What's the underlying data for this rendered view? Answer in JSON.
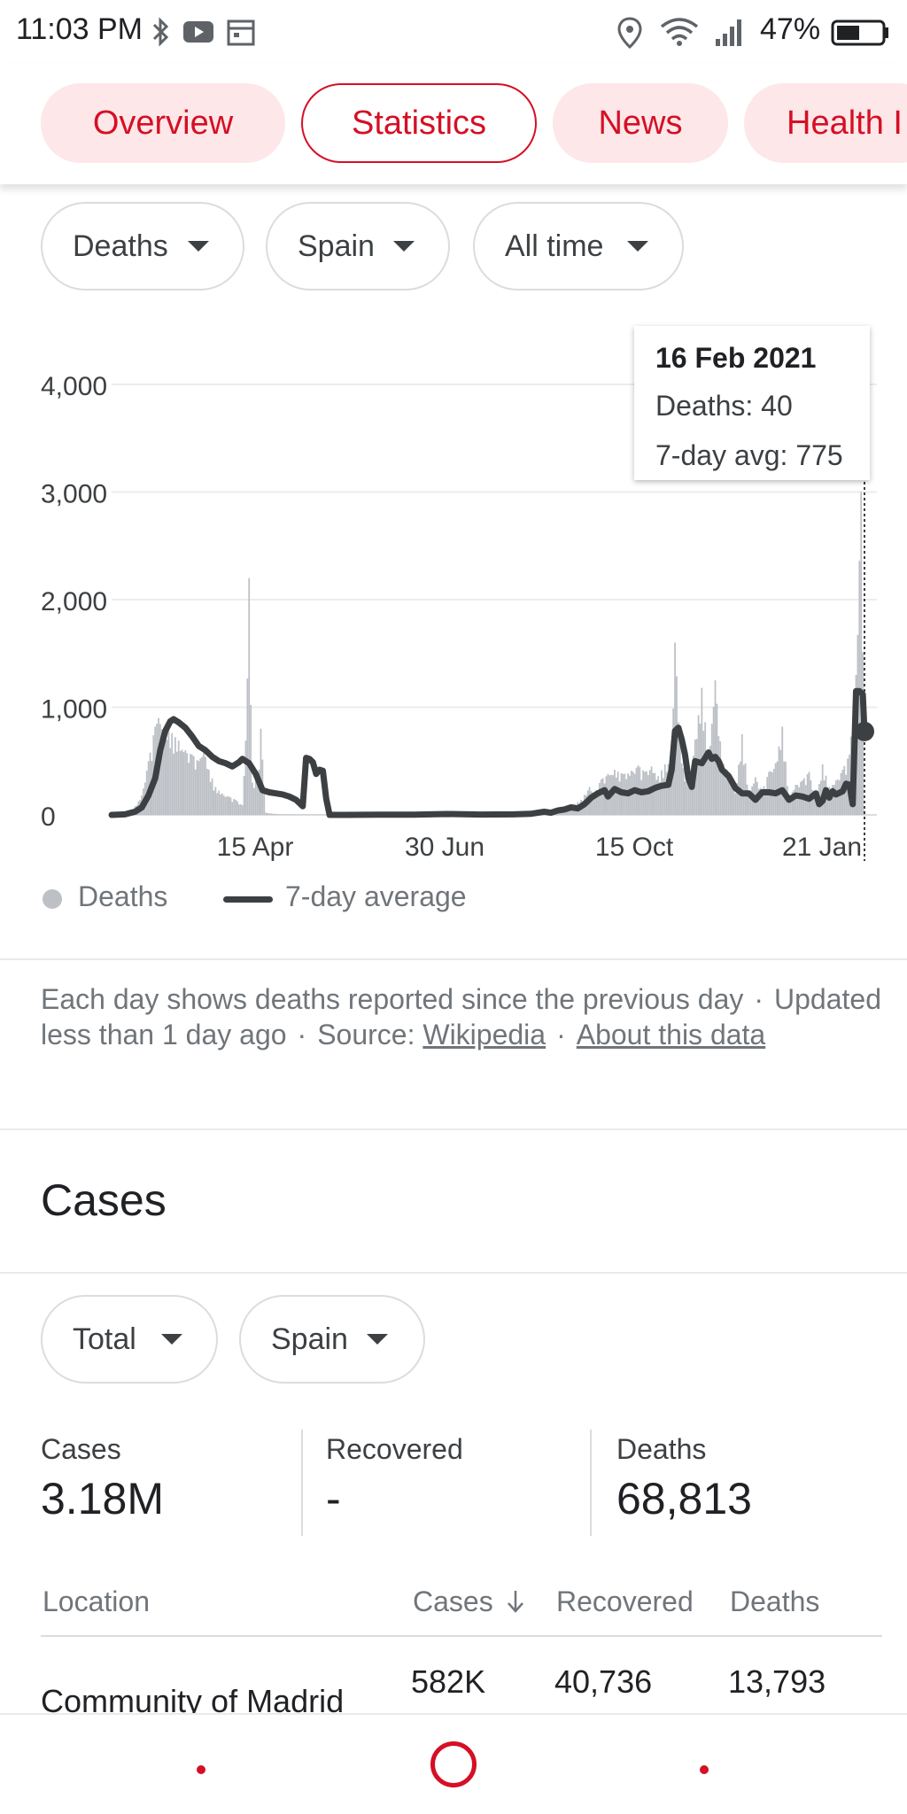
{
  "status_bar": {
    "time": "11:03 PM",
    "battery": "47%",
    "icons": [
      "bluetooth-icon",
      "youtube-icon",
      "calendar-icon",
      "location-icon",
      "wifi-icon",
      "signal-icon",
      "battery-icon"
    ]
  },
  "tabs": [
    {
      "label": "Overview",
      "active": false
    },
    {
      "label": "Statistics",
      "active": true
    },
    {
      "label": "News",
      "active": false
    },
    {
      "label": "Health I",
      "active": false
    }
  ],
  "filters": {
    "metric": "Deaths",
    "region": "Spain",
    "period": "All time"
  },
  "chart_data": {
    "type": "bar",
    "y_ticks": [
      "4,000",
      "3,000",
      "2,000",
      "1,000",
      "0"
    ],
    "x_ticks": [
      "15 Apr",
      "30 Jun",
      "15 Oct",
      "21 Jan"
    ],
    "ylim": [
      0,
      4000
    ],
    "legend_placement": "bottom-left",
    "series": [
      {
        "name": "Deaths",
        "kind": "bar",
        "color": "#bdc1c6",
        "points": [
          [
            0,
            0
          ],
          [
            6,
            2
          ],
          [
            12,
            30
          ],
          [
            18,
            180
          ],
          [
            22,
            500
          ],
          [
            26,
            820
          ],
          [
            28,
            900
          ],
          [
            32,
            830
          ],
          [
            36,
            760
          ],
          [
            40,
            690
          ],
          [
            44,
            600
          ],
          [
            48,
            560
          ],
          [
            52,
            500
          ],
          [
            55,
            640
          ],
          [
            58,
            420
          ],
          [
            62,
            260
          ],
          [
            66,
            200
          ],
          [
            70,
            170
          ],
          [
            74,
            140
          ],
          [
            78,
            90
          ],
          [
            80,
            690
          ],
          [
            82,
            2200
          ],
          [
            84,
            300
          ],
          [
            88,
            420
          ],
          [
            89,
            800
          ],
          [
            92,
            20
          ],
          [
            100,
            5
          ],
          [
            120,
            3
          ],
          [
            150,
            5
          ],
          [
            200,
            4
          ],
          [
            230,
            3
          ],
          [
            250,
            15
          ],
          [
            260,
            40
          ],
          [
            270,
            50
          ],
          [
            275,
            90
          ],
          [
            280,
            140
          ],
          [
            285,
            260
          ],
          [
            288,
            200
          ],
          [
            292,
            330
          ],
          [
            296,
            380
          ],
          [
            300,
            420
          ],
          [
            305,
            380
          ],
          [
            310,
            410
          ],
          [
            314,
            460
          ],
          [
            318,
            400
          ],
          [
            322,
            450
          ],
          [
            326,
            360
          ],
          [
            330,
            470
          ],
          [
            334,
            500
          ],
          [
            336,
            1600
          ],
          [
            340,
            480
          ],
          [
            344,
            300
          ],
          [
            348,
            700
          ],
          [
            352,
            1180
          ],
          [
            356,
            550
          ],
          [
            360,
            1250
          ],
          [
            364,
            500
          ],
          [
            368,
            400
          ],
          [
            372,
            200
          ],
          [
            376,
            750
          ],
          [
            380,
            210
          ],
          [
            384,
            350
          ],
          [
            388,
            220
          ],
          [
            392,
            400
          ],
          [
            396,
            480
          ],
          [
            400,
            820
          ],
          [
            404,
            170
          ],
          [
            408,
            280
          ],
          [
            412,
            320
          ],
          [
            416,
            400
          ],
          [
            420,
            120
          ],
          [
            424,
            470
          ],
          [
            428,
            260
          ],
          [
            432,
            320
          ],
          [
            436,
            420
          ],
          [
            440,
            560
          ],
          [
            444,
            1300
          ],
          [
            447,
            3000
          ],
          [
            449,
            40
          ]
        ]
      },
      {
        "name": "7-day average",
        "kind": "line",
        "color": "#3c4043",
        "points": [
          [
            0,
            0
          ],
          [
            8,
            5
          ],
          [
            14,
            30
          ],
          [
            18,
            70
          ],
          [
            22,
            180
          ],
          [
            26,
            340
          ],
          [
            29,
            600
          ],
          [
            32,
            780
          ],
          [
            35,
            870
          ],
          [
            37,
            890
          ],
          [
            40,
            860
          ],
          [
            44,
            810
          ],
          [
            48,
            730
          ],
          [
            52,
            640
          ],
          [
            56,
            600
          ],
          [
            60,
            540
          ],
          [
            64,
            500
          ],
          [
            68,
            480
          ],
          [
            72,
            450
          ],
          [
            76,
            490
          ],
          [
            78,
            520
          ],
          [
            82,
            480
          ],
          [
            86,
            380
          ],
          [
            90,
            230
          ],
          [
            94,
            210
          ],
          [
            98,
            200
          ],
          [
            102,
            190
          ],
          [
            106,
            170
          ],
          [
            110,
            140
          ],
          [
            112,
            110
          ],
          [
            114,
            80
          ],
          [
            116,
            530
          ],
          [
            118,
            520
          ],
          [
            120,
            490
          ],
          [
            122,
            380
          ],
          [
            124,
            420
          ],
          [
            126,
            410
          ],
          [
            128,
            150
          ],
          [
            130,
            0
          ],
          [
            140,
            0
          ],
          [
            160,
            2
          ],
          [
            180,
            2
          ],
          [
            200,
            8
          ],
          [
            220,
            3
          ],
          [
            240,
            5
          ],
          [
            250,
            10
          ],
          [
            258,
            30
          ],
          [
            262,
            20
          ],
          [
            266,
            40
          ],
          [
            270,
            50
          ],
          [
            274,
            70
          ],
          [
            278,
            60
          ],
          [
            282,
            100
          ],
          [
            286,
            160
          ],
          [
            290,
            200
          ],
          [
            294,
            230
          ],
          [
            296,
            170
          ],
          [
            300,
            240
          ],
          [
            304,
            210
          ],
          [
            308,
            200
          ],
          [
            312,
            230
          ],
          [
            316,
            210
          ],
          [
            320,
            220
          ],
          [
            324,
            250
          ],
          [
            328,
            270
          ],
          [
            332,
            280
          ],
          [
            334,
            420
          ],
          [
            336,
            780
          ],
          [
            338,
            810
          ],
          [
            340,
            700
          ],
          [
            342,
            560
          ],
          [
            344,
            340
          ],
          [
            346,
            260
          ],
          [
            348,
            500
          ],
          [
            352,
            480
          ],
          [
            354,
            530
          ],
          [
            356,
            580
          ],
          [
            358,
            520
          ],
          [
            360,
            540
          ],
          [
            362,
            500
          ],
          [
            364,
            420
          ],
          [
            368,
            360
          ],
          [
            372,
            250
          ],
          [
            376,
            200
          ],
          [
            380,
            200
          ],
          [
            384,
            140
          ],
          [
            388,
            210
          ],
          [
            392,
            210
          ],
          [
            396,
            200
          ],
          [
            400,
            230
          ],
          [
            404,
            140
          ],
          [
            408,
            180
          ],
          [
            412,
            170
          ],
          [
            416,
            150
          ],
          [
            420,
            200
          ],
          [
            422,
            100
          ],
          [
            424,
            130
          ],
          [
            426,
            230
          ],
          [
            428,
            160
          ],
          [
            430,
            220
          ],
          [
            432,
            190
          ],
          [
            436,
            220
          ],
          [
            438,
            290
          ],
          [
            440,
            280
          ],
          [
            442,
            100
          ],
          [
            444,
            1150
          ],
          [
            446,
            1150
          ],
          [
            448,
            1120
          ],
          [
            449,
            775
          ]
        ]
      }
    ],
    "tooltip": {
      "date": "16 Feb 2021",
      "deaths_line": "Deaths: 40",
      "avg_line": "7-day avg: 775"
    },
    "legend": {
      "deaths": "Deaths",
      "avg": "7-day average"
    }
  },
  "note": {
    "text": "Each day shows deaths reported since the previous day",
    "updated": "Updated less than 1 day ago",
    "source_prefix": "Source:",
    "source_link": "Wikipedia",
    "about_link": "About this data"
  },
  "cases": {
    "title": "Cases",
    "filters": {
      "type": "Total",
      "region": "Spain"
    },
    "stats": [
      {
        "label": "Cases",
        "value": "3.18M"
      },
      {
        "label": "Recovered",
        "value": "-"
      },
      {
        "label": "Deaths",
        "value": "68,813"
      }
    ],
    "table": {
      "headers": [
        "Location",
        "Cases",
        "Recovered",
        "Deaths"
      ],
      "rows": [
        {
          "location": "Community of Madrid",
          "cases": "582K",
          "recovered": "40,736",
          "deaths": "13,793"
        }
      ]
    }
  }
}
